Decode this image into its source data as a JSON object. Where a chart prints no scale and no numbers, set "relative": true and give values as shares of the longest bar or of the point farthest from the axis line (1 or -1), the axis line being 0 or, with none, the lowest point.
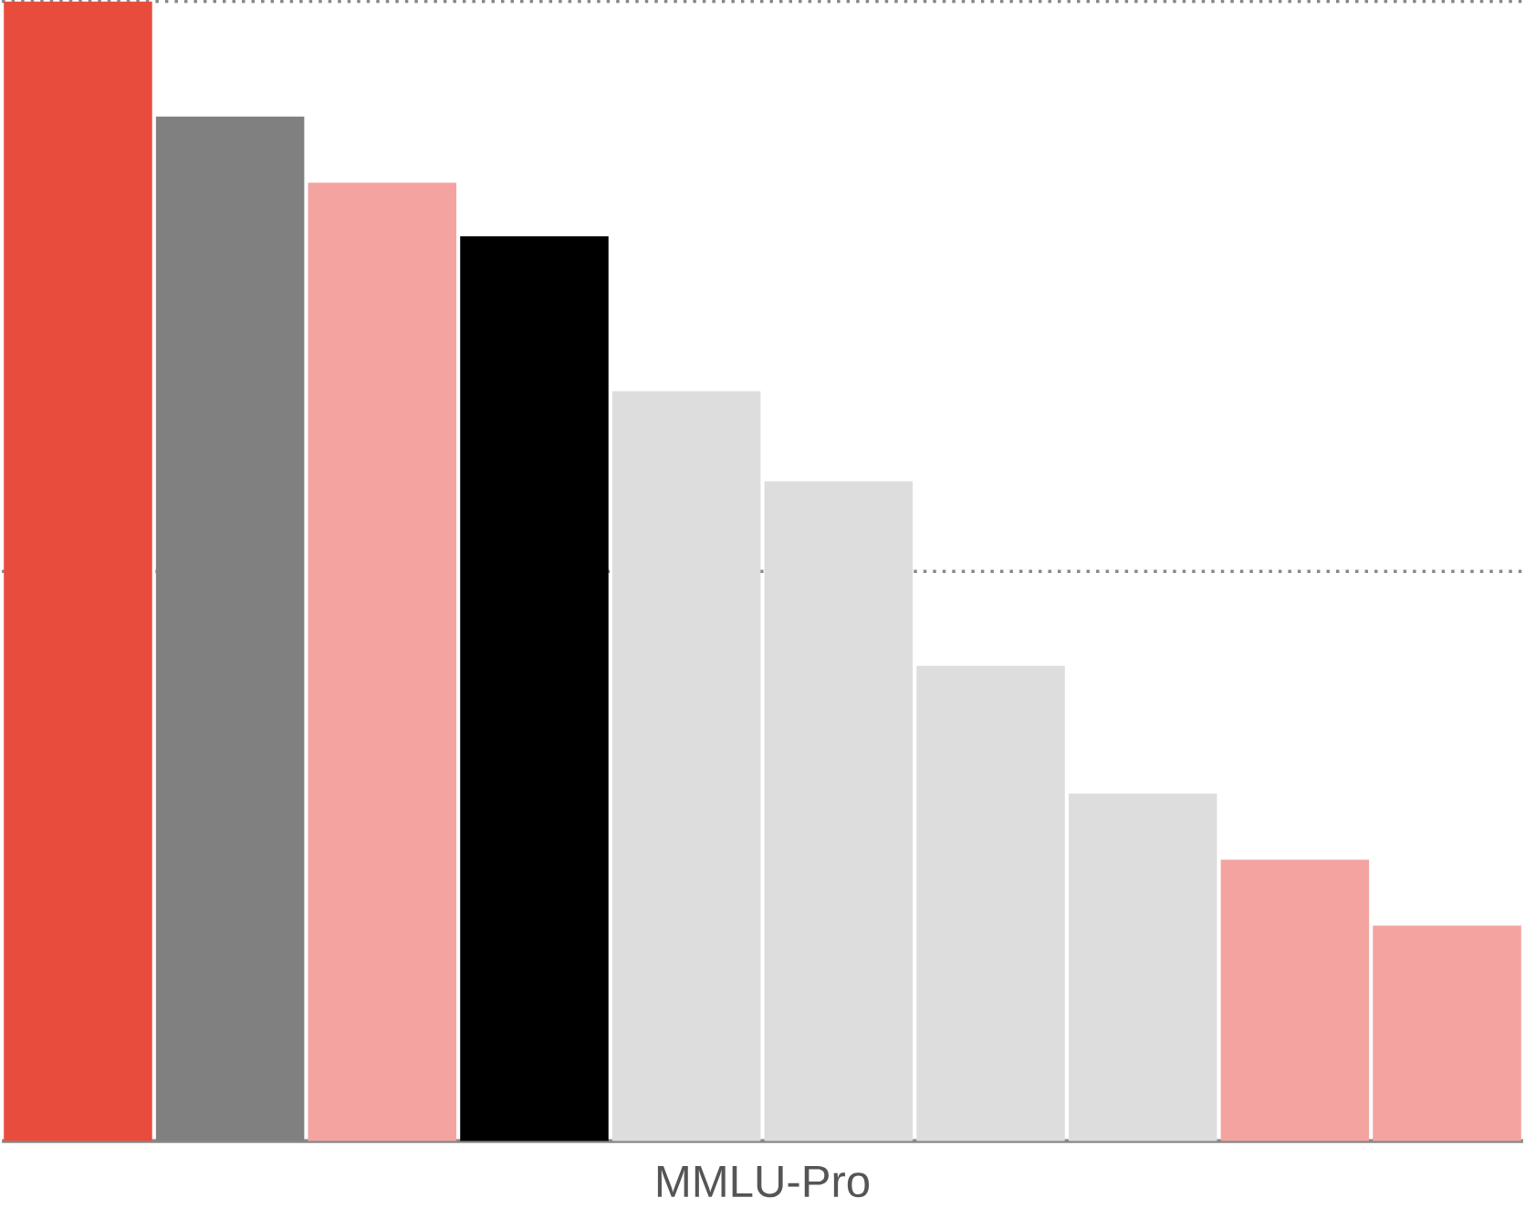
{
  "chart_data": {
    "type": "bar",
    "relative": true,
    "xlabel": "MMLU-Pro",
    "categories": [
      null,
      null,
      null,
      null,
      null,
      null,
      null,
      null,
      null,
      null
    ],
    "values": [
      1,
      0.899,
      0.841,
      0.794,
      0.658,
      0.579,
      0.417,
      0.305,
      0.247,
      0.189
    ],
    "colors": [
      "#e84c3d",
      "#808080",
      "#f4a4a0",
      "#000000",
      "#dddddd",
      "#dddddd",
      "#dddddd",
      "#dddddd",
      "#f4a4a0",
      "#f4a4a0"
    ],
    "ref_lines": [
      {
        "axis": "y",
        "value": 0.5,
        "color": "#888888",
        "line_style": "dotted"
      },
      {
        "axis": "y",
        "value": 1.0,
        "color": "#888888",
        "line_style": "dotted"
      }
    ]
  }
}
